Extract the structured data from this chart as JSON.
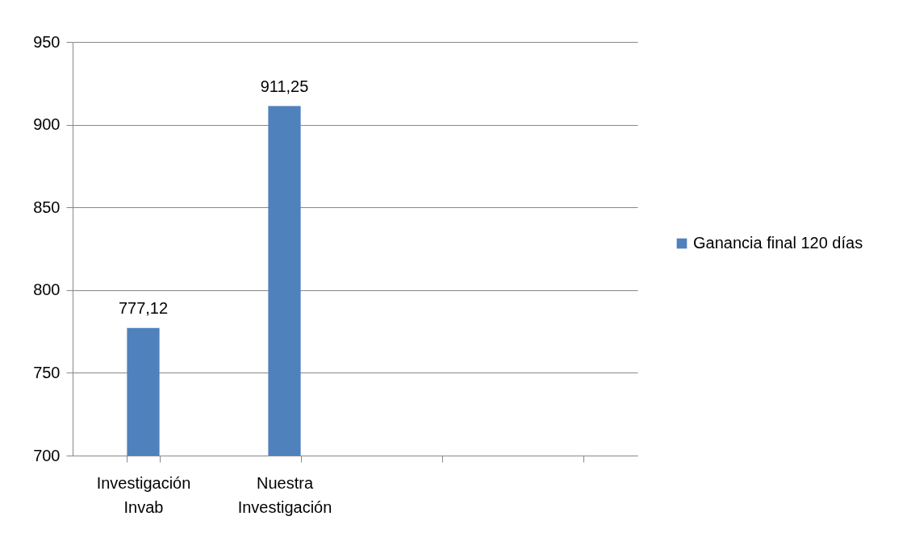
{
  "chart_data": {
    "type": "bar",
    "categories": [
      "Investigación Invab",
      "Nuestra Investigación",
      null,
      null
    ],
    "series": [
      {
        "name": "Ganancia final 120 días",
        "color": "#4f81bd",
        "values": [
          777.12,
          911.25,
          null,
          null
        ],
        "value_labels": [
          "777,12",
          "911,25",
          null,
          null
        ]
      }
    ],
    "ylim": [
      700,
      950
    ],
    "yticks": [
      700,
      750,
      800,
      850,
      900,
      950
    ],
    "grid": "y",
    "legend": "right"
  }
}
